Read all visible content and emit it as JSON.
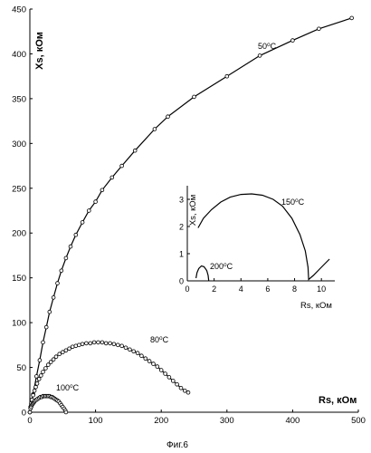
{
  "chart_data": [
    {
      "type": "line",
      "ylabel": "Xs, кОм",
      "xlabel": "Rs, кОм",
      "xlim": [
        0,
        500
      ],
      "ylim": [
        0,
        450
      ],
      "xticks": [
        0,
        100,
        200,
        300,
        400,
        500
      ],
      "yticks": [
        0,
        50,
        100,
        150,
        200,
        250,
        300,
        350,
        400,
        450
      ],
      "series": [
        {
          "name": "50⁰C",
          "x": [
            0,
            2,
            5,
            10,
            15,
            20,
            25,
            30,
            36,
            42,
            48,
            55,
            62,
            70,
            80,
            90,
            100,
            110,
            125,
            140,
            160,
            190,
            210,
            250,
            300,
            350,
            400,
            440,
            490
          ],
          "y": [
            0,
            8,
            20,
            40,
            58,
            78,
            95,
            112,
            128,
            144,
            158,
            172,
            185,
            198,
            212,
            225,
            235,
            248,
            262,
            275,
            292,
            316,
            330,
            352,
            375,
            398,
            415,
            428,
            440
          ]
        },
        {
          "name": "80⁰C",
          "x": [
            0,
            1,
            2,
            3,
            5,
            7,
            9,
            11,
            14,
            17,
            20,
            24,
            28,
            32,
            36,
            40,
            45,
            50,
            55,
            60,
            65,
            70,
            75,
            80,
            86,
            92,
            98,
            104,
            110,
            116,
            122,
            128,
            134,
            140,
            146,
            152,
            158,
            164,
            170,
            176,
            182,
            188,
            194,
            200,
            206,
            212,
            218,
            224,
            230,
            236,
            241
          ],
          "y": [
            0,
            6,
            10,
            14,
            19,
            24,
            28,
            32,
            37,
            41,
            45,
            49,
            53,
            56,
            59,
            62,
            65,
            67,
            69,
            71,
            73,
            74,
            75,
            76,
            77,
            77,
            78,
            78,
            78,
            77,
            77,
            76,
            75,
            74,
            72,
            70,
            68,
            66,
            63,
            60,
            57,
            54,
            51,
            47,
            43,
            39,
            35,
            31,
            27,
            24,
            22
          ]
        },
        {
          "name": "100⁰C",
          "x": [
            0,
            1,
            2,
            3,
            4,
            5,
            6,
            7,
            8,
            10,
            12,
            14,
            16,
            18,
            20,
            22,
            24,
            26,
            28,
            30,
            32,
            34,
            36,
            38,
            40,
            42,
            44,
            46,
            48,
            50,
            52,
            54,
            55
          ],
          "y": [
            0,
            4,
            6,
            8,
            9,
            10,
            11,
            12,
            13,
            14,
            15,
            16,
            17,
            17,
            18,
            18,
            18,
            18,
            18,
            18,
            17,
            17,
            16,
            15,
            14,
            13,
            12,
            10,
            8,
            6,
            4,
            2,
            0
          ]
        }
      ]
    },
    {
      "type": "line",
      "ylabel": "Xs, кОм",
      "xlabel": "Rs, кОм",
      "xlim": [
        0,
        11
      ],
      "ylim": [
        0,
        3.5
      ],
      "xticks": [
        0,
        2,
        4,
        6,
        8,
        10
      ],
      "yticks": [
        0,
        1,
        2,
        3
      ],
      "series": [
        {
          "name": "150⁰C",
          "x": [
            0.8,
            1.2,
            1.8,
            2.5,
            3.2,
            4.0,
            4.8,
            5.6,
            6.4,
            7.1,
            7.8,
            8.4,
            8.8,
            9.0,
            9.05,
            9.4,
            9.8,
            10.2,
            10.6
          ],
          "y": [
            1.95,
            2.3,
            2.62,
            2.9,
            3.08,
            3.18,
            3.2,
            3.15,
            3.0,
            2.75,
            2.3,
            1.7,
            1.1,
            0.5,
            0.05,
            0.2,
            0.4,
            0.6,
            0.8
          ]
        },
        {
          "name": "200⁰C",
          "x": [
            0.65,
            0.72,
            0.85,
            1.05,
            1.25,
            1.45,
            1.55,
            1.6
          ],
          "y": [
            0.1,
            0.3,
            0.45,
            0.55,
            0.52,
            0.38,
            0.2,
            0.0
          ]
        }
      ]
    }
  ],
  "labels": {
    "main_ylabel": "Xs, кОм",
    "main_xlabel": "Rs, кОм",
    "inset_ylabel": "Xs, кОм",
    "inset_xlabel": "Rs, кОм",
    "caption": "Фиг.6"
  }
}
